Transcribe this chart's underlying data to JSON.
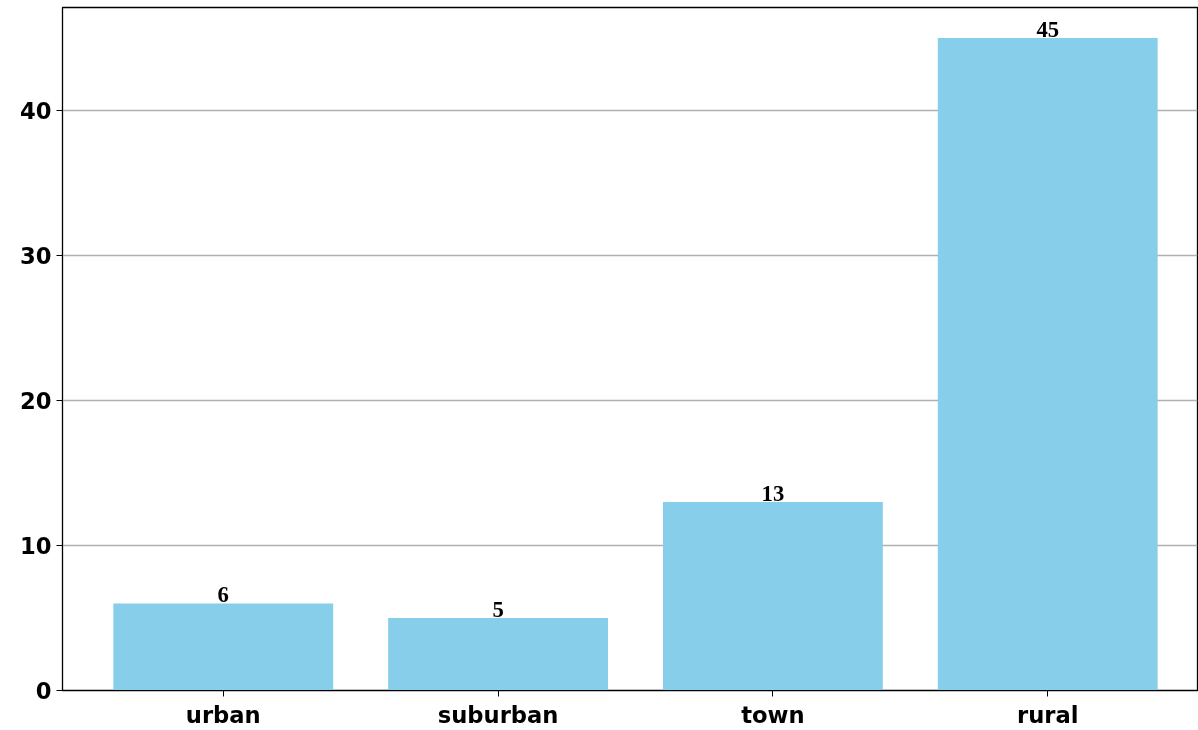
{
  "chart_data": {
    "type": "bar",
    "categories": [
      "urban",
      "suburban",
      "town",
      "rural"
    ],
    "values": [
      6,
      5,
      13,
      45
    ],
    "color": "#87ceeb",
    "ylim": [
      0,
      47.1
    ],
    "yticks": [
      0,
      10,
      20,
      30,
      40
    ],
    "grid": "y",
    "data_labels": true
  }
}
